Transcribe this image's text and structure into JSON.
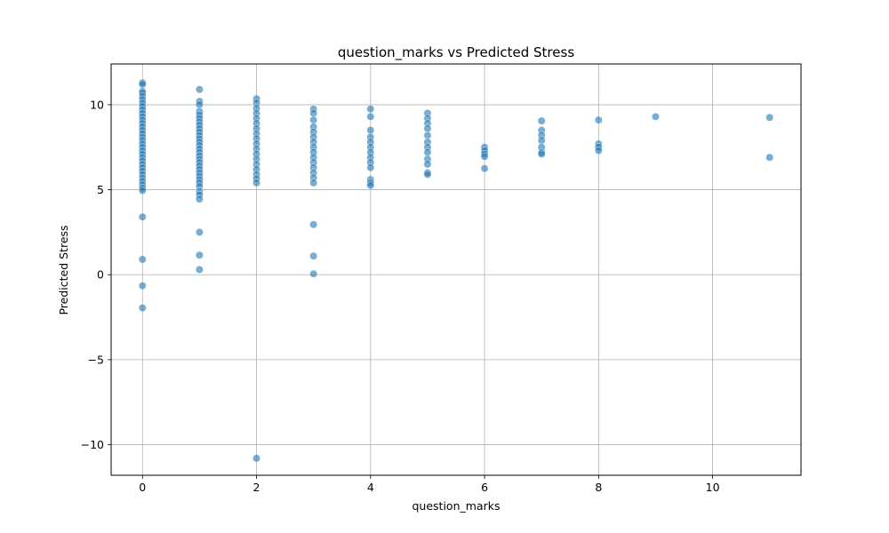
{
  "chart_data": {
    "type": "scatter",
    "title": "question_marks vs Predicted Stress",
    "xlabel": "question_marks",
    "ylabel": "Predicted Stress",
    "xlim": [
      -0.55,
      11.55
    ],
    "ylim": [
      -11.8,
      12.4
    ],
    "xticks": [
      0,
      2,
      4,
      6,
      8,
      10
    ],
    "xtick_labels": [
      "0",
      "2",
      "4",
      "6",
      "8",
      "10"
    ],
    "yticks": [
      -10,
      -5,
      0,
      5,
      10
    ],
    "ytick_labels": [
      "−10",
      "−5",
      "0",
      "5",
      "10"
    ],
    "grid": true,
    "marker_color": "#1f77b4",
    "marker_alpha": 0.6,
    "marker_edge_color": "#ffffff",
    "series": [
      {
        "name": "Predicted Stress",
        "points": [
          [
            0,
            11.3
          ],
          [
            0,
            11.2
          ],
          [
            0,
            10.8
          ],
          [
            0,
            10.7
          ],
          [
            0,
            10.5
          ],
          [
            0,
            10.3
          ],
          [
            0,
            10.1
          ],
          [
            0,
            9.9
          ],
          [
            0,
            9.7
          ],
          [
            0,
            9.5
          ],
          [
            0,
            9.3
          ],
          [
            0,
            9.1
          ],
          [
            0,
            8.9
          ],
          [
            0,
            8.7
          ],
          [
            0,
            8.5
          ],
          [
            0,
            8.3
          ],
          [
            0,
            8.1
          ],
          [
            0,
            7.9
          ],
          [
            0,
            7.7
          ],
          [
            0,
            7.5
          ],
          [
            0,
            7.3
          ],
          [
            0,
            7.1
          ],
          [
            0,
            6.9
          ],
          [
            0,
            6.7
          ],
          [
            0,
            6.5
          ],
          [
            0,
            6.3
          ],
          [
            0,
            6.1
          ],
          [
            0,
            5.9
          ],
          [
            0,
            5.7
          ],
          [
            0,
            5.5
          ],
          [
            0,
            5.3
          ],
          [
            0,
            5.1
          ],
          [
            0,
            4.95
          ],
          [
            0,
            3.4
          ],
          [
            0,
            0.9
          ],
          [
            0,
            -0.65
          ],
          [
            0,
            -1.95
          ],
          [
            1,
            10.9
          ],
          [
            1,
            10.2
          ],
          [
            1,
            10.0
          ],
          [
            1,
            9.6
          ],
          [
            1,
            9.4
          ],
          [
            1,
            9.2
          ],
          [
            1,
            9.0
          ],
          [
            1,
            8.8
          ],
          [
            1,
            8.6
          ],
          [
            1,
            8.4
          ],
          [
            1,
            8.2
          ],
          [
            1,
            8.0
          ],
          [
            1,
            7.8
          ],
          [
            1,
            7.6
          ],
          [
            1,
            7.4
          ],
          [
            1,
            7.2
          ],
          [
            1,
            7.0
          ],
          [
            1,
            6.8
          ],
          [
            1,
            6.6
          ],
          [
            1,
            6.4
          ],
          [
            1,
            6.2
          ],
          [
            1,
            6.0
          ],
          [
            1,
            5.8
          ],
          [
            1,
            5.6
          ],
          [
            1,
            5.4
          ],
          [
            1,
            5.2
          ],
          [
            1,
            4.9
          ],
          [
            1,
            4.7
          ],
          [
            1,
            4.45
          ],
          [
            1,
            2.5
          ],
          [
            1,
            1.15
          ],
          [
            1,
            0.3
          ],
          [
            2,
            10.35
          ],
          [
            2,
            10.1
          ],
          [
            2,
            9.8
          ],
          [
            2,
            9.5
          ],
          [
            2,
            9.2
          ],
          [
            2,
            8.9
          ],
          [
            2,
            8.6
          ],
          [
            2,
            8.3
          ],
          [
            2,
            8.0
          ],
          [
            2,
            7.7
          ],
          [
            2,
            7.4
          ],
          [
            2,
            7.1
          ],
          [
            2,
            6.8
          ],
          [
            2,
            6.5
          ],
          [
            2,
            6.2
          ],
          [
            2,
            5.9
          ],
          [
            2,
            5.65
          ],
          [
            2,
            5.4
          ],
          [
            2,
            -10.8
          ],
          [
            3,
            9.75
          ],
          [
            3,
            9.5
          ],
          [
            3,
            9.1
          ],
          [
            3,
            8.7
          ],
          [
            3,
            8.4
          ],
          [
            3,
            8.1
          ],
          [
            3,
            7.8
          ],
          [
            3,
            7.5
          ],
          [
            3,
            7.2
          ],
          [
            3,
            6.9
          ],
          [
            3,
            6.6
          ],
          [
            3,
            6.3
          ],
          [
            3,
            6.0
          ],
          [
            3,
            5.7
          ],
          [
            3,
            5.4
          ],
          [
            3,
            2.95
          ],
          [
            3,
            1.1
          ],
          [
            3,
            0.05
          ],
          [
            4,
            9.75
          ],
          [
            4,
            9.3
          ],
          [
            4,
            8.5
          ],
          [
            4,
            8.1
          ],
          [
            4,
            7.8
          ],
          [
            4,
            7.5
          ],
          [
            4,
            7.2
          ],
          [
            4,
            6.9
          ],
          [
            4,
            6.6
          ],
          [
            4,
            6.3
          ],
          [
            4,
            5.6
          ],
          [
            4,
            5.4
          ],
          [
            4,
            5.25
          ],
          [
            5,
            9.5
          ],
          [
            5,
            9.2
          ],
          [
            5,
            8.9
          ],
          [
            5,
            8.6
          ],
          [
            5,
            8.2
          ],
          [
            5,
            7.8
          ],
          [
            5,
            7.5
          ],
          [
            5,
            7.2
          ],
          [
            5,
            6.8
          ],
          [
            5,
            6.5
          ],
          [
            5,
            6.0
          ],
          [
            5,
            5.9
          ],
          [
            6,
            7.5
          ],
          [
            6,
            7.3
          ],
          [
            6,
            7.1
          ],
          [
            6,
            6.95
          ],
          [
            6,
            6.25
          ],
          [
            7,
            9.05
          ],
          [
            7,
            8.5
          ],
          [
            7,
            8.2
          ],
          [
            7,
            7.9
          ],
          [
            7,
            7.5
          ],
          [
            7,
            7.2
          ],
          [
            7,
            7.1
          ],
          [
            8,
            9.1
          ],
          [
            8,
            7.7
          ],
          [
            8,
            7.5
          ],
          [
            8,
            7.3
          ],
          [
            9,
            9.3
          ],
          [
            11,
            9.25
          ],
          [
            11,
            6.9
          ]
        ]
      }
    ]
  }
}
